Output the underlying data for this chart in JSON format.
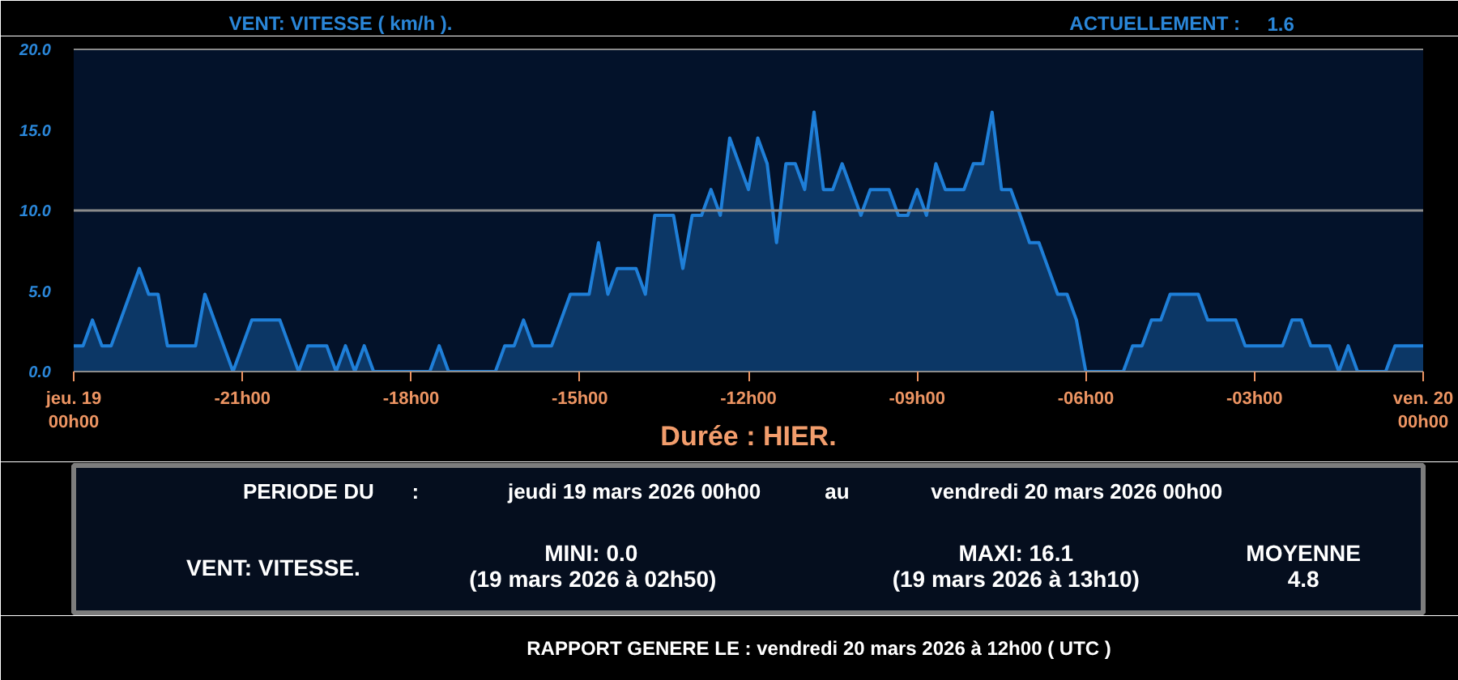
{
  "chart_data": {
    "type": "area",
    "title": "VENT: VITESSE ( km/h ).",
    "xlabel": "Durée : HIER.",
    "color": "#1f7fd8",
    "categories": [
      "jeu. 19\n00h00",
      null,
      null,
      null,
      null,
      null,
      null,
      null,
      null,
      null,
      null,
      null,
      null,
      null,
      null,
      null,
      null,
      null,
      "-21h00",
      null,
      null,
      null,
      null,
      null,
      null,
      null,
      null,
      null,
      null,
      null,
      null,
      null,
      null,
      null,
      null,
      null,
      "-18h00",
      null,
      null,
      null,
      null,
      null,
      null,
      null,
      null,
      null,
      null,
      null,
      null,
      null,
      null,
      null,
      null,
      null,
      "-15h00",
      null,
      null,
      null,
      null,
      null,
      null,
      null,
      null,
      null,
      null,
      null,
      null,
      null,
      null,
      null,
      null,
      null,
      "-12h00",
      null,
      null,
      null,
      null,
      null,
      null,
      null,
      null,
      null,
      null,
      null,
      null,
      null,
      null,
      null,
      null,
      null,
      "-09h00",
      null,
      null,
      null,
      null,
      null,
      null,
      null,
      null,
      null,
      null,
      null,
      null,
      null,
      null,
      null,
      null,
      null,
      "-06h00",
      null,
      null,
      null,
      null,
      null,
      null,
      null,
      null,
      null,
      null,
      null,
      null,
      null,
      null,
      null,
      null,
      null,
      "-03h00",
      null,
      null,
      null,
      null,
      null,
      null,
      null,
      null,
      null,
      null,
      null,
      null,
      null,
      null,
      null,
      null,
      null,
      "ven. 20\n00h00"
    ],
    "values": [
      1.6,
      1.6,
      3.2,
      1.6,
      1.6,
      3.2,
      4.8,
      6.4,
      4.8,
      4.8,
      1.6,
      1.6,
      1.6,
      1.6,
      4.8,
      3.2,
      1.6,
      0,
      1.6,
      3.2,
      3.2,
      3.2,
      3.2,
      1.6,
      0,
      1.6,
      1.6,
      1.6,
      0,
      1.6,
      0,
      1.6,
      0,
      0,
      0,
      0,
      0,
      0,
      0,
      1.6,
      0,
      0,
      0,
      0,
      0,
      0,
      1.6,
      1.6,
      3.2,
      1.6,
      1.6,
      1.6,
      3.2,
      4.8,
      4.8,
      4.8,
      8.0,
      4.8,
      6.4,
      6.4,
      6.4,
      4.8,
      9.7,
      9.7,
      9.7,
      6.4,
      9.7,
      9.7,
      11.3,
      9.7,
      14.5,
      12.9,
      11.3,
      14.5,
      12.9,
      8.0,
      12.9,
      12.9,
      11.3,
      16.1,
      11.3,
      11.3,
      12.9,
      11.3,
      9.7,
      11.3,
      11.3,
      11.3,
      9.7,
      9.7,
      11.3,
      9.7,
      12.9,
      11.3,
      11.3,
      11.3,
      12.9,
      12.9,
      16.1,
      11.3,
      11.3,
      9.7,
      8.0,
      8.0,
      6.4,
      4.8,
      4.8,
      3.2,
      0,
      0,
      0,
      0,
      0,
      1.6,
      1.6,
      3.2,
      3.2,
      4.8,
      4.8,
      4.8,
      4.8,
      3.2,
      3.2,
      3.2,
      3.2,
      1.6,
      1.6,
      1.6,
      1.6,
      1.6,
      3.2,
      3.2,
      1.6,
      1.6,
      1.6,
      0,
      1.6,
      0,
      0,
      0,
      0,
      1.6,
      1.6,
      1.6,
      1.6
    ],
    "ylim": [
      0,
      20
    ],
    "yticks": [
      {
        "value": 0,
        "label": "0.0"
      },
      {
        "value": 5,
        "label": "5.0"
      },
      {
        "value": 10,
        "label": "10.0"
      },
      {
        "value": 15,
        "label": "15.0"
      },
      {
        "value": 20,
        "label": "20.0"
      }
    ],
    "ref_lines": [
      {
        "axis": "y",
        "value": 10,
        "color": "#8a8a8a"
      }
    ],
    "annotations": [
      "ACTUELLEMENT :",
      "1.6",
      "PERIODE DU",
      ":",
      "jeudi 19 mars 2026 00h00",
      "au",
      "vendredi 20 mars 2026 00h00",
      "VENT: VITESSE.",
      "MINI: 0.0",
      "(19 mars 2026 à 02h50)",
      "MAXI: 16.1",
      "(19 mars 2026 à 13h10)",
      "MOYENNE",
      "4.8",
      "RAPPORT GENERE LE : vendredi 20 mars 2026 à 12h00 ( UTC )"
    ]
  }
}
